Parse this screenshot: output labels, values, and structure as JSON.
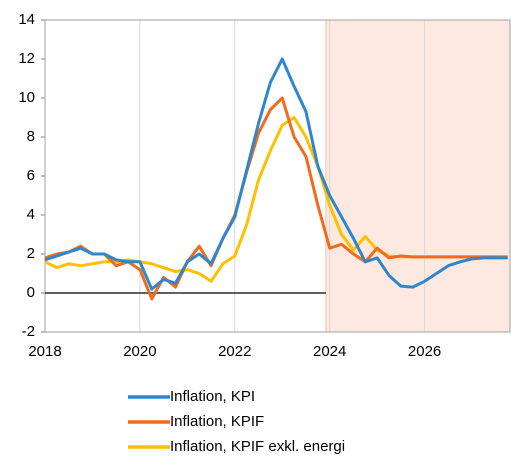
{
  "chart_data": {
    "type": "line",
    "x": [
      2018,
      2018.25,
      2018.5,
      2018.75,
      2019,
      2019.25,
      2019.5,
      2019.75,
      2020,
      2020.25,
      2020.5,
      2020.75,
      2021,
      2021.25,
      2021.5,
      2021.75,
      2022,
      2022.25,
      2022.5,
      2022.75,
      2023,
      2023.25,
      2023.5,
      2023.75,
      2024,
      2024.25,
      2024.5,
      2024.75,
      2025,
      2025.25,
      2025.5,
      2025.75,
      2026,
      2026.25,
      2026.5,
      2026.75,
      2027,
      2027.25,
      2027.5,
      2027.75
    ],
    "series": [
      {
        "name": "Inflation, KPI",
        "color": "#2e87cc",
        "values": [
          1.7,
          1.9,
          2.1,
          2.3,
          2.0,
          2.0,
          1.7,
          1.6,
          1.6,
          0.2,
          0.7,
          0.5,
          1.6,
          2.0,
          1.5,
          2.8,
          3.9,
          6.3,
          8.7,
          10.8,
          12.0,
          10.6,
          9.3,
          6.5,
          5.0,
          3.9,
          2.8,
          1.6,
          1.8,
          0.9,
          0.35,
          0.3,
          0.6,
          1.0,
          1.4,
          1.6,
          1.75,
          1.8,
          1.8,
          1.8
        ]
      },
      {
        "name": "Inflation, KPIF",
        "color": "#f26b1d",
        "values": [
          1.8,
          2.0,
          2.1,
          2.4,
          2.0,
          2.0,
          1.4,
          1.6,
          1.2,
          -0.3,
          0.8,
          0.3,
          1.6,
          2.4,
          1.4,
          2.8,
          4.0,
          6.2,
          8.2,
          9.4,
          10.0,
          8.0,
          7.0,
          4.5,
          2.3,
          2.5,
          2.0,
          1.6,
          2.3,
          1.8,
          1.9,
          1.85,
          1.85,
          1.85,
          1.85,
          1.85,
          1.85,
          1.85,
          1.85,
          1.85
        ]
      },
      {
        "name": "Inflation, KPIF exkl. energi",
        "color": "#ffc000",
        "values": [
          1.6,
          1.3,
          1.5,
          1.4,
          1.5,
          1.6,
          1.6,
          1.7,
          1.6,
          1.5,
          1.3,
          1.1,
          1.2,
          1.0,
          0.6,
          1.5,
          1.9,
          3.5,
          5.8,
          7.3,
          8.6,
          9.0,
          8.0,
          6.5,
          4.5,
          3.0,
          2.2,
          2.9,
          2.2,
          1.9,
          1.85,
          1.85,
          1.85,
          1.85,
          1.85,
          1.85,
          1.85,
          1.85,
          1.85,
          1.85
        ]
      }
    ],
    "xlim": [
      2018,
      2027.8
    ],
    "ylim": [
      -2,
      14
    ],
    "xticks": [
      2018,
      2020,
      2022,
      2024,
      2026
    ],
    "yticks": [
      -2,
      0,
      2,
      4,
      6,
      8,
      10,
      12,
      14
    ],
    "shade_from": 2023.92,
    "shade_color": "#fde9e0",
    "grid": true
  }
}
